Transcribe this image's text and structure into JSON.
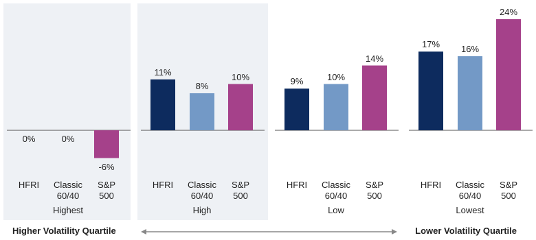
{
  "chart_data": {
    "type": "bar",
    "categories": [
      "Highest",
      "High",
      "Low",
      "Lowest"
    ],
    "series": [
      {
        "name": "HFRI",
        "color": "#0d2b5e",
        "values": [
          0,
          11,
          9,
          17
        ],
        "value_labels": [
          "0%",
          "11%",
          "9%",
          "17%"
        ]
      },
      {
        "name": "Classic 60/40",
        "color": "#7399c6",
        "values": [
          0,
          8,
          10,
          16
        ],
        "value_labels": [
          "0%",
          "8%",
          "10%",
          "16%"
        ]
      },
      {
        "name": "S&P 500",
        "color": "#a5418a",
        "values": [
          -6,
          10,
          14,
          24
        ],
        "value_labels": [
          "-6%",
          "10%",
          "14%",
          "24%"
        ]
      }
    ],
    "left_label": "Higher Volatility Quartile",
    "right_label": "Lower Volatility Quartile"
  }
}
